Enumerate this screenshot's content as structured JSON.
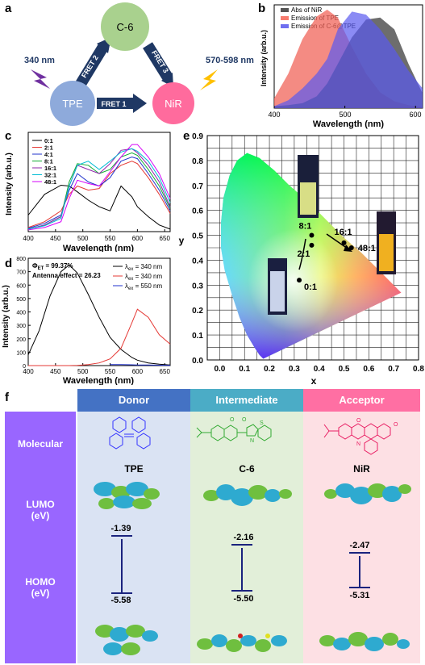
{
  "panels": {
    "a": {
      "label": "a",
      "nodes": {
        "tpe": "TPE",
        "c6": "C-6",
        "nir": "NiR"
      },
      "fret": [
        "FRET 1",
        "FRET 2",
        "FRET 3"
      ],
      "excitation": "340 nm",
      "emission": "570-598 nm",
      "colors": {
        "tpe": "#8eaadb",
        "c6": "#a9d18e",
        "nir": "#ff6b9d",
        "arrow": "#1f3864"
      }
    },
    "b": {
      "label": "b",
      "ylabel": "Intensity (arb.u.)",
      "xlabel": "Wavelength (nm)",
      "legend": [
        "Abs of NiR",
        "Emission of TPE",
        "Emission of C-6@TPE"
      ],
      "ticks_x": [
        "400",
        "500",
        "600"
      ]
    },
    "c": {
      "label": "c",
      "ylabel": "Intensity (arb.u.)",
      "xlabel": "Wavelength (nm)",
      "legend": [
        "0:1",
        "2:1",
        "4:1",
        "8:1",
        "16:1",
        "32:1",
        "48:1"
      ],
      "ticks_x": [
        "400",
        "450",
        "500",
        "550",
        "600",
        "650"
      ]
    },
    "d": {
      "label": "d",
      "ylabel": "Intensity (arb.u.)",
      "xlabel": "Wavelength (nm)",
      "annot1": "Φ",
      "annot1sub": "ET",
      "annot1val": " = 99.37%",
      "annot2": "Antenna effect = 26.23",
      "legend": [
        {
          "pre": "λ",
          "sub": "ex",
          "post": " = 340 nm"
        },
        {
          "pre": "λ",
          "sub": "ex",
          "post": " = 340 nm"
        },
        {
          "pre": "λ",
          "sub": "ex",
          "post": " = 550 nm"
        }
      ],
      "ticks_x": [
        "400",
        "450",
        "500",
        "550",
        "600",
        "650"
      ],
      "ticks_y": [
        "0",
        "100",
        "200",
        "300",
        "400",
        "500",
        "600",
        "700",
        "800"
      ]
    },
    "e": {
      "label": "e",
      "xlabel": "x",
      "ylabel": "y",
      "ticks_x": [
        "0.0",
        "0.1",
        "0.2",
        "0.3",
        "0.4",
        "0.5",
        "0.6",
        "0.7",
        "0.8"
      ],
      "ticks_y": [
        "0.0",
        "0.1",
        "0.2",
        "0.3",
        "0.4",
        "0.5",
        "0.6",
        "0.7",
        "0.8",
        "0.9"
      ],
      "points": [
        "0:1",
        "2:1",
        "8:1",
        "16:1",
        "48:1"
      ]
    },
    "f": {
      "label": "f",
      "columns": [
        {
          "header": "Donor",
          "name": "TPE",
          "lumo": "-1.39",
          "homo": "-5.58",
          "head_color": "#4472c4",
          "body_color": "#dae3f3",
          "mol_color": "#3333ff"
        },
        {
          "header": "Intermediate",
          "name": "C-6",
          "lumo": "-2.16",
          "homo": "-5.50",
          "head_color": "#4bacc6",
          "body_color": "#e2efd9",
          "mol_color": "#33aa33"
        },
        {
          "header": "Acceptor",
          "name": "NiR",
          "lumo": "-2.47",
          "homo": "-5.31",
          "head_color": "#ff6fa3",
          "body_color": "#fde0e4",
          "mol_color": "#e91e63"
        }
      ],
      "rows": {
        "molecular": "Molecular",
        "lumo": "LUMO",
        "lumo_unit": "(eV)",
        "homo": "HOMO",
        "homo_unit": "(eV)"
      },
      "side_color": "#9966ff"
    }
  },
  "chart_data": [
    {
      "type": "area",
      "panel": "b",
      "xlabel": "Wavelength (nm)",
      "ylabel": "Intensity (arb.u.)",
      "xlim": [
        400,
        610
      ],
      "x": [
        400,
        420,
        440,
        460,
        475,
        490,
        510,
        530,
        550,
        570,
        590,
        610
      ],
      "series": [
        {
          "name": "Abs of NiR",
          "values": [
            0.02,
            0.03,
            0.05,
            0.12,
            0.25,
            0.45,
            0.72,
            0.9,
            0.92,
            0.8,
            0.45,
            0.15
          ]
        },
        {
          "name": "Emission of TPE",
          "values": [
            0.1,
            0.35,
            0.7,
            0.93,
            1.0,
            0.92,
            0.62,
            0.35,
            0.16,
            0.07,
            0.03,
            0.01
          ]
        },
        {
          "name": "Emission of C-6@TPE",
          "values": [
            0.02,
            0.08,
            0.2,
            0.35,
            0.5,
            0.8,
            0.98,
            0.95,
            0.8,
            0.6,
            0.38,
            0.2
          ]
        }
      ]
    },
    {
      "type": "line",
      "panel": "c",
      "xlabel": "Wavelength (nm)",
      "ylabel": "Intensity (arb.u.)",
      "xlim": [
        400,
        660
      ],
      "x": [
        400,
        430,
        460,
        475,
        490,
        510,
        530,
        550,
        570,
        590,
        600,
        620,
        640,
        660
      ],
      "series": [
        {
          "name": "0:1",
          "values": [
            0.2,
            0.45,
            0.56,
            0.55,
            0.48,
            0.38,
            0.3,
            0.25,
            0.55,
            0.42,
            0.3,
            0.18,
            0.08,
            0.03
          ]
        },
        {
          "name": "2:1",
          "values": [
            0.05,
            0.12,
            0.25,
            0.45,
            0.55,
            0.5,
            0.52,
            0.7,
            0.8,
            0.85,
            0.82,
            0.65,
            0.45,
            0.22
          ]
        },
        {
          "name": "4:1",
          "values": [
            0.04,
            0.1,
            0.2,
            0.5,
            0.7,
            0.6,
            0.55,
            0.65,
            0.85,
            0.9,
            0.88,
            0.7,
            0.5,
            0.25
          ]
        },
        {
          "name": "8:1",
          "values": [
            0.03,
            0.08,
            0.18,
            0.6,
            0.82,
            0.8,
            0.7,
            0.75,
            0.9,
            0.95,
            0.92,
            0.75,
            0.55,
            0.28
          ]
        },
        {
          "name": "16:1",
          "values": [
            0.03,
            0.08,
            0.18,
            0.55,
            0.8,
            0.75,
            0.7,
            0.82,
            0.98,
            1.0,
            0.95,
            0.8,
            0.6,
            0.3
          ]
        },
        {
          "name": "32:1",
          "values": [
            0.03,
            0.07,
            0.16,
            0.55,
            0.8,
            0.85,
            0.75,
            0.85,
            0.96,
            1.0,
            0.97,
            0.85,
            0.65,
            0.35
          ]
        },
        {
          "name": "48:1",
          "values": [
            0.02,
            0.05,
            0.12,
            0.4,
            0.62,
            0.58,
            0.55,
            0.72,
            0.9,
            1.05,
            1.05,
            0.9,
            0.7,
            0.4
          ]
        }
      ]
    },
    {
      "type": "line",
      "panel": "d",
      "xlabel": "Wavelength (nm)",
      "ylabel": "Intensity (arb.u.)",
      "xlim": [
        400,
        660
      ],
      "ylim": [
        0,
        800
      ],
      "x": [
        400,
        420,
        440,
        460,
        475,
        490,
        510,
        530,
        550,
        570,
        590,
        600,
        620,
        640,
        660
      ],
      "series": [
        {
          "name": "λex = 340 nm (TPE)",
          "values": [
            80,
            260,
            520,
            700,
            750,
            690,
            530,
            360,
            210,
            120,
            60,
            40,
            20,
            10,
            5
          ]
        },
        {
          "name": "λex = 340 nm",
          "values": [
            0,
            0,
            0,
            0,
            0,
            2,
            8,
            20,
            50,
            130,
            320,
            420,
            360,
            230,
            160
          ]
        },
        {
          "name": "λex = 550 nm",
          "values": [
            null,
            null,
            null,
            null,
            null,
            null,
            null,
            null,
            8,
            7,
            6,
            5,
            4,
            3,
            2
          ]
        }
      ]
    },
    {
      "type": "scatter",
      "panel": "e",
      "xlabel": "x",
      "ylabel": "y",
      "xlim": [
        -0.05,
        0.8
      ],
      "ylim": [
        0.0,
        0.9
      ],
      "points": [
        {
          "label": "0:1",
          "x": 0.32,
          "y": 0.32
        },
        {
          "label": "2:1",
          "x": 0.37,
          "y": 0.46
        },
        {
          "label": "8:1",
          "x": 0.37,
          "y": 0.5
        },
        {
          "label": "16:1",
          "x": 0.5,
          "y": 0.47
        },
        {
          "label": "48:1",
          "x": 0.53,
          "y": 0.45
        }
      ]
    }
  ]
}
